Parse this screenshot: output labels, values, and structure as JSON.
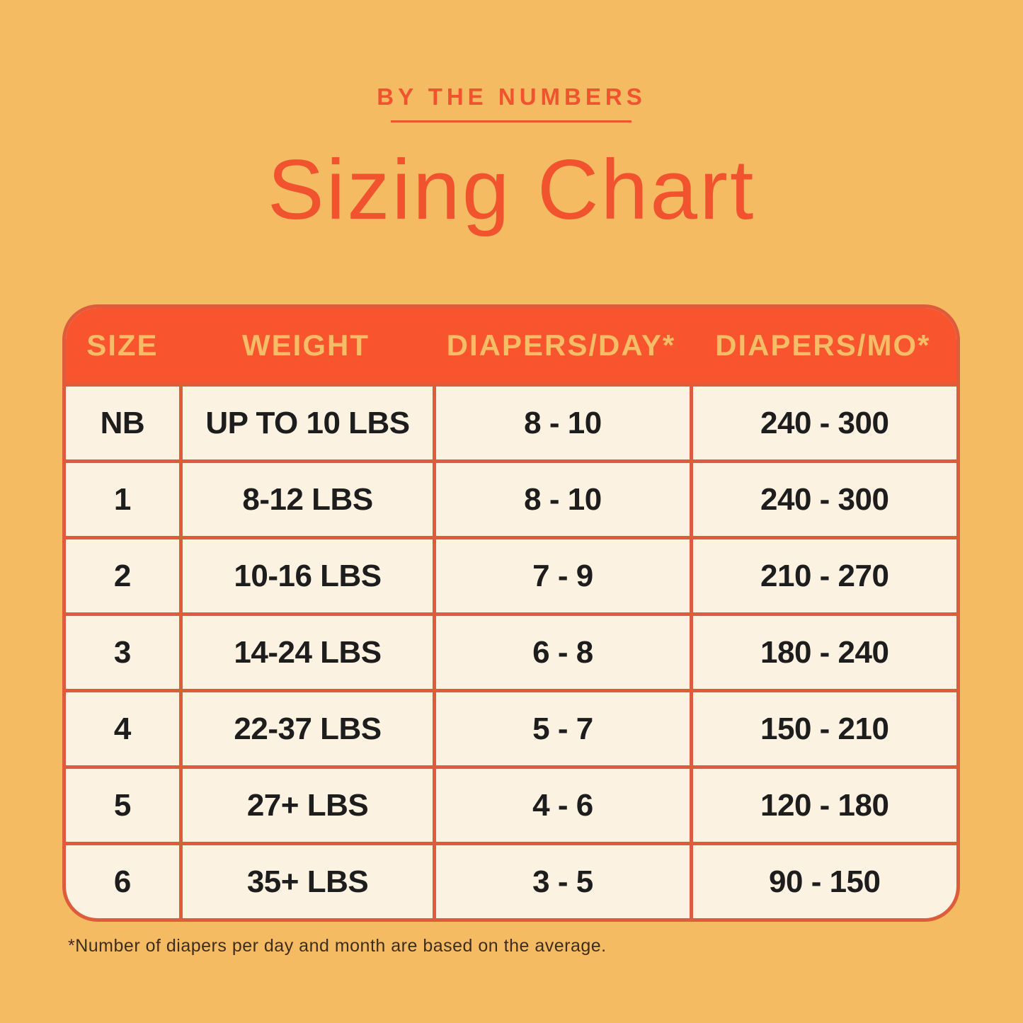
{
  "page": {
    "eyebrow": "BY THE NUMBERS",
    "title": "Sizing Chart",
    "footnote": "*Number of diapers per day and month are based on the average.",
    "colors": {
      "background": "#F5BB63",
      "accent": "#F1532F",
      "table_header_bg": "#F8552E",
      "table_header_text": "#F6BC66",
      "table_body_bg": "#FCF2E1",
      "table_border": "#DE5B3B",
      "body_text": "#1D1D1D",
      "footnote_text": "#3E2D1D"
    }
  },
  "chart_data": {
    "type": "table",
    "title": "Sizing Chart",
    "subtitle": "BY THE NUMBERS",
    "columns": [
      "SIZE",
      "WEIGHT",
      "DIAPERS/DAY*",
      "DIAPERS/MO*"
    ],
    "rows": [
      [
        "NB",
        "UP TO 10 LBS",
        "8 - 10",
        "240 - 300"
      ],
      [
        "1",
        "8-12 LBS",
        "8 - 10",
        "240 - 300"
      ],
      [
        "2",
        "10-16 LBS",
        "7 - 9",
        "210 - 270"
      ],
      [
        "3",
        "14-24 LBS",
        "6 - 8",
        "180 - 240"
      ],
      [
        "4",
        "22-37 LBS",
        "5 - 7",
        "150 - 210"
      ],
      [
        "5",
        "27+ LBS",
        "4 - 6",
        "120 - 180"
      ],
      [
        "6",
        "35+ LBS",
        "3 - 5",
        "90 - 150"
      ]
    ],
    "footnote": "*Number of diapers per day and month are based on the average.",
    "layout": {
      "header_position": "top",
      "grid": true
    }
  }
}
